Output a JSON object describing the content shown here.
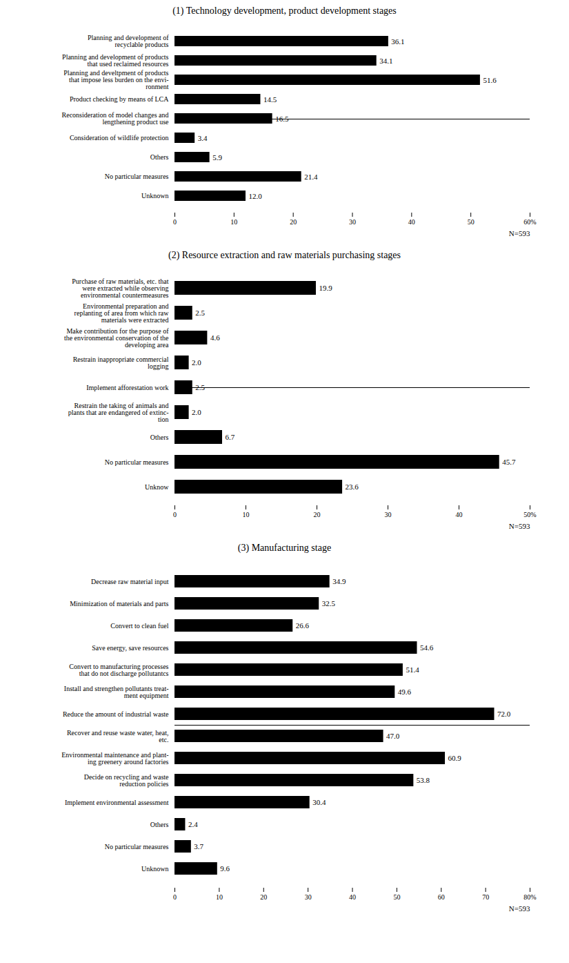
{
  "chart_data": [
    {
      "type": "bar",
      "orientation": "horizontal",
      "title": "(1) Technology development, product development stages",
      "categories": [
        "Planning and development of\nrecyclable products",
        "Planning and development of products\nthat used reclaimed resources",
        "Planning and develtpment of products\nthat impose less burden on the envi-\nronment",
        "Product checking by means of LCA",
        "Reconsideration of model changes and\nlengthening product use",
        "Consideration of wildlife protection",
        "Others",
        "No particular measures",
        "Unknown"
      ],
      "values": [
        36.1,
        34.1,
        51.6,
        14.5,
        16.5,
        3.4,
        5.9,
        21.4,
        12.0
      ],
      "value_labels": [
        "36.1",
        "34.1",
        "51.6",
        "14.5",
        "16.5",
        "3.4",
        "5.9",
        "21.4",
        "12.0"
      ],
      "color": "#000000",
      "xlim": [
        0,
        60
      ],
      "xticks": [
        0,
        10,
        20,
        30,
        40,
        50,
        {
          "value": 60,
          "label": "60%"
        }
      ],
      "data_labels": true,
      "grid": false,
      "annotation": "N=593"
    },
    {
      "type": "bar",
      "orientation": "horizontal",
      "title": "(2) Resource extraction and raw materials purchasing stages",
      "categories": [
        "Purchase of raw materials, etc. that\nwere extracted while observing\nenvironmental countermeasures",
        "Environmental preparation and\nreplanting of area from which raw\nmaterials were extracted",
        "Make contribution for the purpose of\nthe environmental conservation of the\ndeveloping area",
        "Restrain inappropriate commercial\nlogging",
        "Implement afforestation work",
        "Restrain the taking of animals and\nplants that are endangered of extinc-\ntion",
        "Others",
        "No particular measures",
        "Unknow"
      ],
      "values": [
        19.9,
        2.5,
        4.6,
        2.0,
        2.5,
        2.0,
        6.7,
        45.7,
        23.6
      ],
      "value_labels": [
        "19.9",
        "2.5",
        "4.6",
        "2.0",
        "2.5",
        "2.0",
        "6.7",
        "45.7",
        "23.6"
      ],
      "color": "#000000",
      "xlim": [
        0,
        50
      ],
      "xticks": [
        0,
        10,
        20,
        30,
        40,
        {
          "value": 50,
          "label": "50%"
        }
      ],
      "data_labels": true,
      "grid": false,
      "annotation": "N=593"
    },
    {
      "type": "bar",
      "orientation": "horizontal",
      "title": "(3) Manufacturing stage",
      "categories": [
        "Decrease raw material input",
        "Minimization of materials and parts",
        "Convert to clean fuel",
        "Save energy, save resources",
        "Convert to manufacturing processes\nthat do not discharge pollutantcs",
        "Install and strengthen pollutants treat-\nment equipment",
        "Reduce the amount of industrial waste",
        "Recover and reuse waste water, heat,\netc.",
        "Environmental maintenance and plant-\ning greenery around factories",
        "Decide on recycling and waste\nreduction policies",
        "Implement environmental assessment",
        "Others",
        "No particular measures",
        "Unknown"
      ],
      "values": [
        34.9,
        32.5,
        26.6,
        54.6,
        51.4,
        49.6,
        72.0,
        47.0,
        60.9,
        53.8,
        30.4,
        2.4,
        3.7,
        9.6
      ],
      "value_labels": [
        "34.9",
        "32.5",
        "26.6",
        "54.6",
        "51.4",
        "49.6",
        "72.0",
        "47.0",
        "60.9",
        "53.8",
        "30.4",
        "2.4",
        "3.7",
        "9.6"
      ],
      "color": "#000000",
      "xlim": [
        0,
        80
      ],
      "xticks": [
        0,
        10,
        20,
        30,
        40,
        50,
        60,
        70,
        {
          "value": 80,
          "label": "80%"
        }
      ],
      "data_labels": true,
      "grid": false,
      "annotation": "N=593"
    }
  ]
}
